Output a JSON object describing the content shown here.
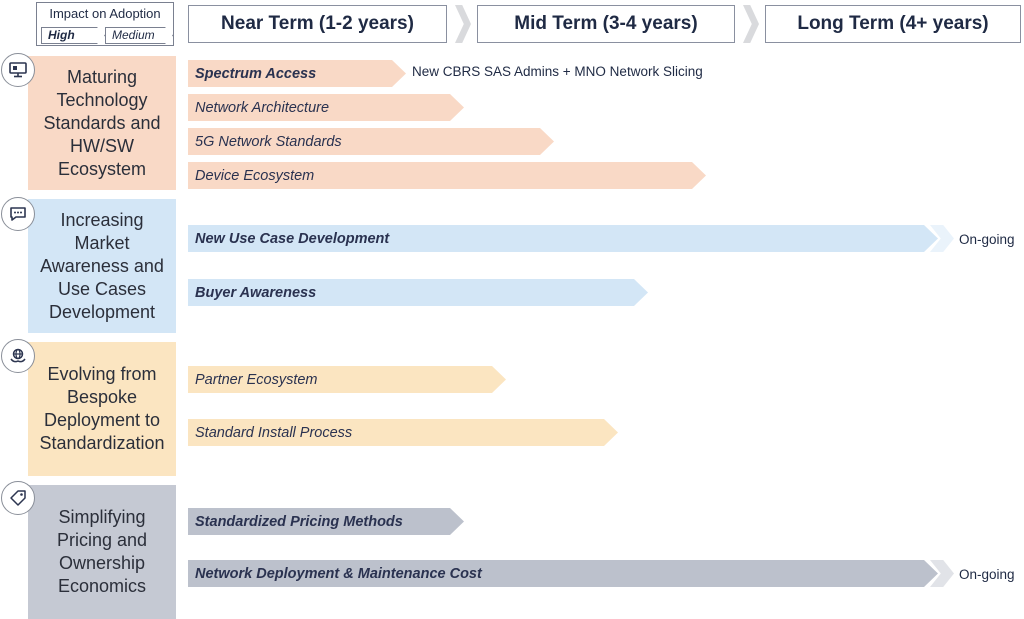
{
  "legend": {
    "title": "Impact on Adoption",
    "high": "High",
    "medium": "Medium"
  },
  "terms": [
    {
      "label": "Near Term (1-2 years)"
    },
    {
      "label": "Mid Term (3-4 years)"
    },
    {
      "label": "Long Term (4+ years)"
    }
  ],
  "categories": [
    {
      "label": "Maturing Technology Standards and HW/SW Ecosystem",
      "icon": "monitor-icon",
      "color": "#f9d9c6"
    },
    {
      "label": "Increasing Market Awareness and Use Cases Development",
      "icon": "chat-bubble-icon",
      "color": "#d3e6f6"
    },
    {
      "label": "Evolving from Bespoke Deployment to Standardization",
      "icon": "globe-hands-icon",
      "color": "#fbe5c1"
    },
    {
      "label": "Simplifying Pricing and Ownership Economics",
      "icon": "price-tag-icon",
      "color": "#c5c9d3"
    }
  ],
  "initiatives": [
    {
      "label": "Spectrum Access",
      "impact": "High",
      "note": "New CBRS SAS Admins + MNO Network Slicing"
    },
    {
      "label": "Network Architecture",
      "impact": "Medium"
    },
    {
      "label": "5G Network Standards",
      "impact": "Medium"
    },
    {
      "label": "Device Ecosystem",
      "impact": "Medium"
    },
    {
      "label": "New Use Case Development",
      "impact": "High",
      "note": "On-going"
    },
    {
      "label": "Buyer Awareness",
      "impact": "High"
    },
    {
      "label": "Partner Ecosystem",
      "impact": "Medium"
    },
    {
      "label": "Standard Install Process",
      "impact": "Medium"
    },
    {
      "label": "Standardized Pricing Methods",
      "impact": "High"
    },
    {
      "label": "Network Deployment & Maintenance Cost",
      "impact": "High",
      "note": "On-going"
    }
  ]
}
